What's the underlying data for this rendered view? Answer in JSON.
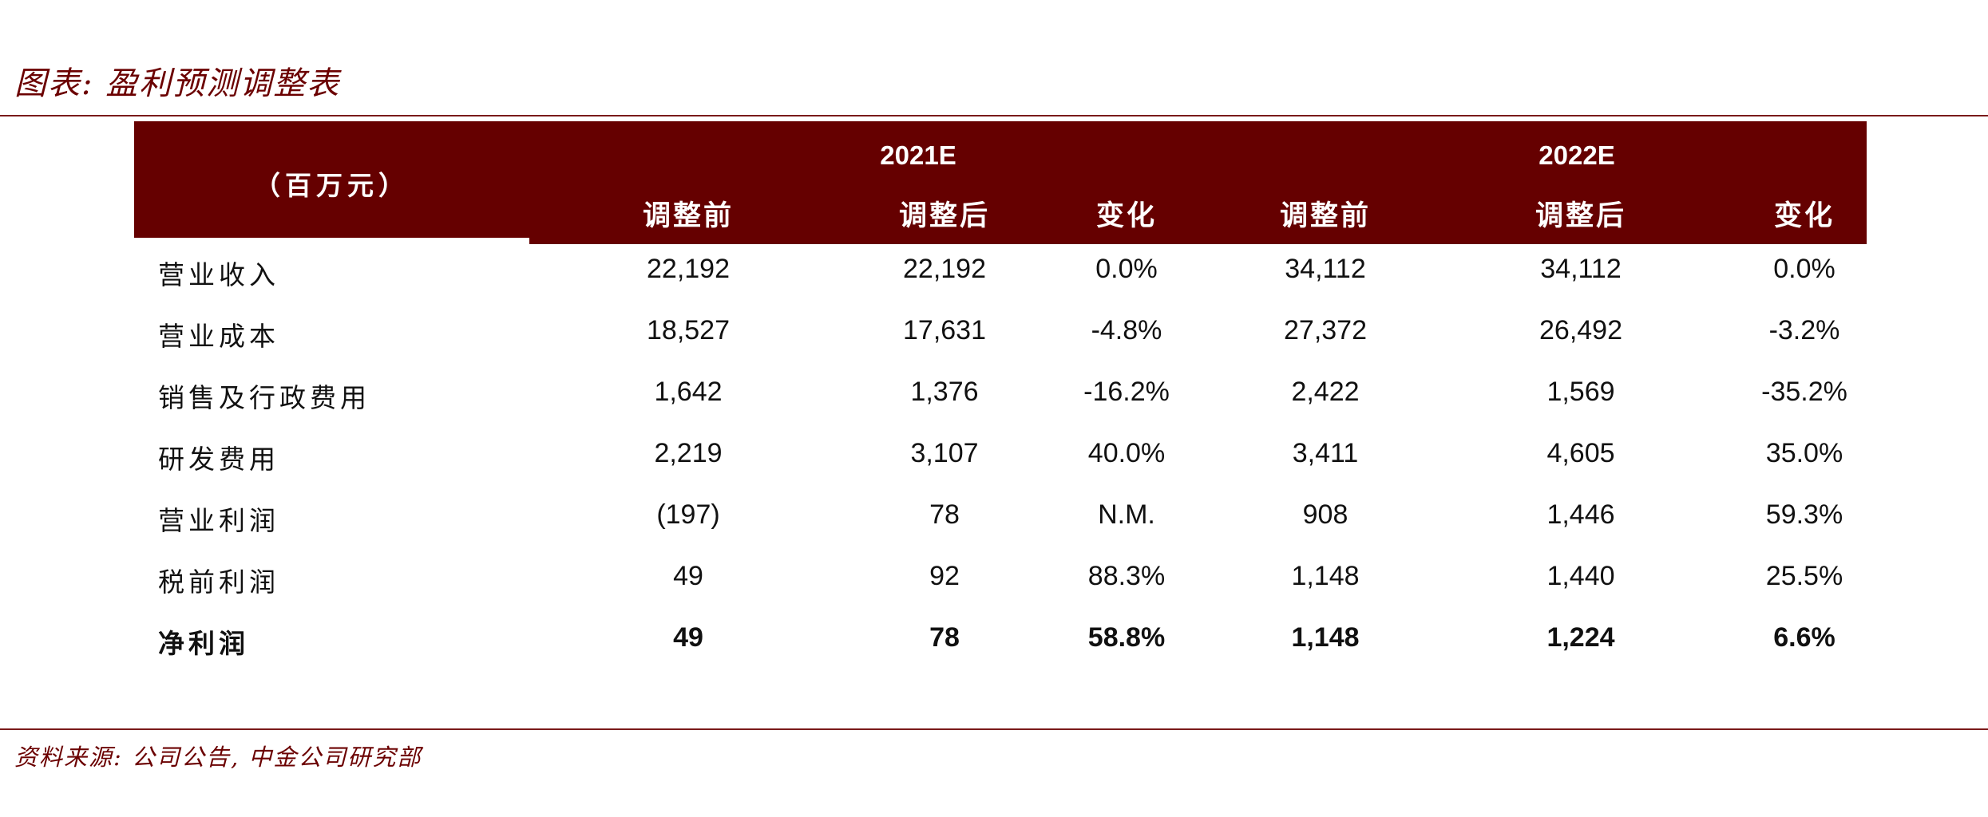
{
  "figure_title": "图表: 盈利预测调整表",
  "source_note": "资料来源: 公司公告, 中金公司研究部",
  "table": {
    "unit_label": "（百万元）",
    "years": [
      "2021E",
      "2022E"
    ],
    "sub_headers": [
      "调整前",
      "调整后",
      "变化",
      "调整前",
      "调整后",
      "变化"
    ],
    "rows": [
      {
        "label": "营业收入",
        "values": [
          "22,192",
          "22,192",
          "0.0%",
          "34,112",
          "34,112",
          "0.0%"
        ]
      },
      {
        "label": "营业成本",
        "values": [
          "18,527",
          "17,631",
          "-4.8%",
          "27,372",
          "26,492",
          "-3.2%"
        ]
      },
      {
        "label": "销售及行政费用",
        "values": [
          "1,642",
          "1,376",
          "-16.2%",
          "2,422",
          "1,569",
          "-35.2%"
        ]
      },
      {
        "label": "研发费用",
        "values": [
          "2,219",
          "3,107",
          "40.0%",
          "3,411",
          "4,605",
          "35.0%"
        ]
      },
      {
        "label": "营业利润",
        "values": [
          "(197)",
          "78",
          "N.M.",
          "908",
          "1,446",
          "59.3%"
        ]
      },
      {
        "label": "税前利润",
        "values": [
          "49",
          "92",
          "88.3%",
          "1,148",
          "1,440",
          "25.5%"
        ]
      },
      {
        "label": "净利润",
        "values": [
          "49",
          "78",
          "58.8%",
          "1,148",
          "1,224",
          "6.6%"
        ],
        "bold": true
      }
    ]
  },
  "colors": {
    "header_bg": "#650000",
    "rule": "#7a1a1a",
    "title_text": "#6b0000"
  }
}
